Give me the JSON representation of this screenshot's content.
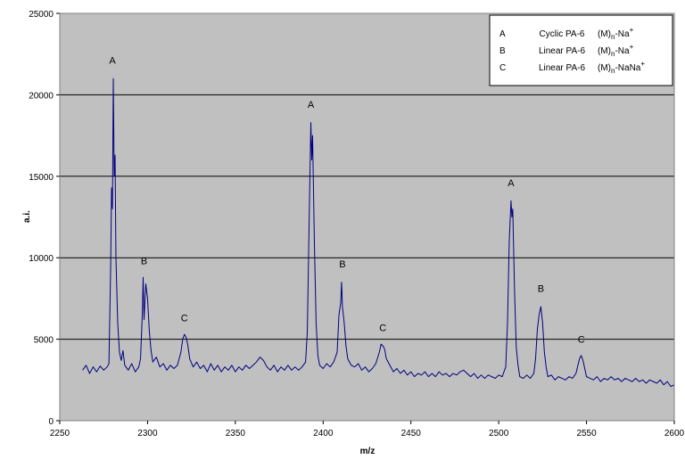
{
  "chart_data": {
    "type": "line",
    "x_label": "m/z",
    "y_label": "a.i.",
    "xlim": [
      2250,
      2600
    ],
    "xticks": [
      2250,
      2300,
      2350,
      2400,
      2450,
      2500,
      2550,
      2600
    ],
    "ylim": [
      0,
      25000
    ],
    "yticks": [
      0,
      5000,
      10000,
      15000,
      20000,
      25000
    ],
    "grid": true,
    "background": "#c0c0c0",
    "legend_position": "upper right",
    "x": [
      2263,
      2265,
      2267,
      2269,
      2271,
      2273,
      2275,
      2277,
      2278,
      2279,
      2279.5,
      2280,
      2280.5,
      2281,
      2281.5,
      2282,
      2283,
      2284,
      2285,
      2286,
      2287,
      2289,
      2291,
      2293,
      2295,
      2296,
      2297,
      2297.5,
      2298,
      2299,
      2300,
      2301,
      2302,
      2303,
      2305,
      2307,
      2309,
      2311,
      2313,
      2315,
      2317,
      2319,
      2320,
      2321,
      2322,
      2323,
      2324,
      2326,
      2328,
      2330,
      2332,
      2334,
      2336,
      2338,
      2340,
      2342,
      2344,
      2346,
      2348,
      2350,
      2352,
      2354,
      2356,
      2358,
      2360,
      2362,
      2364,
      2366,
      2368,
      2370,
      2372,
      2374,
      2376,
      2378,
      2380,
      2382,
      2384,
      2386,
      2388,
      2390,
      2391,
      2392,
      2393,
      2393.5,
      2394,
      2395,
      2396,
      2397,
      2398,
      2400,
      2402,
      2404,
      2406,
      2408,
      2409,
      2410,
      2410.5,
      2411,
      2412,
      2413,
      2414,
      2416,
      2418,
      2420,
      2422,
      2424,
      2426,
      2428,
      2430,
      2432,
      2433,
      2434,
      2435,
      2436,
      2438,
      2440,
      2442,
      2444,
      2446,
      2448,
      2450,
      2452,
      2454,
      2456,
      2458,
      2460,
      2462,
      2464,
      2466,
      2468,
      2470,
      2472,
      2474,
      2476,
      2478,
      2480,
      2482,
      2484,
      2486,
      2488,
      2490,
      2492,
      2494,
      2496,
      2498,
      2500,
      2502,
      2504,
      2505,
      2506,
      2507,
      2507.5,
      2508,
      2509,
      2510,
      2511,
      2512,
      2514,
      2516,
      2518,
      2520,
      2521,
      2522,
      2523,
      2524,
      2525,
      2526,
      2527,
      2528,
      2530,
      2532,
      2534,
      2536,
      2538,
      2540,
      2542,
      2544,
      2546,
      2547,
      2548,
      2549,
      2550,
      2552,
      2554,
      2556,
      2558,
      2560,
      2562,
      2564,
      2566,
      2568,
      2570,
      2572,
      2574,
      2576,
      2578,
      2580,
      2582,
      2584,
      2586,
      2588,
      2590,
      2592,
      2594,
      2596,
      2598,
      2600
    ],
    "series": [
      {
        "color": "#000080",
        "values": [
          3100,
          3400,
          2900,
          3300,
          3000,
          3350,
          3100,
          3300,
          3500,
          9500,
          14300,
          13000,
          21000,
          15000,
          16300,
          10000,
          6000,
          4200,
          3700,
          4300,
          3400,
          3100,
          3500,
          3000,
          3300,
          3800,
          6500,
          8800,
          6200,
          8400,
          7500,
          5500,
          4300,
          3600,
          3900,
          3300,
          3500,
          3100,
          3400,
          3200,
          3400,
          4200,
          5000,
          5300,
          5100,
          4600,
          3800,
          3300,
          3600,
          3200,
          3400,
          3000,
          3500,
          3100,
          3400,
          3000,
          3300,
          3100,
          3400,
          3000,
          3300,
          3100,
          3400,
          3200,
          3400,
          3600,
          3900,
          3700,
          3300,
          3100,
          3400,
          3000,
          3300,
          3100,
          3400,
          3100,
          3300,
          3100,
          3300,
          3600,
          5500,
          12000,
          18300,
          16000,
          17500,
          11000,
          6000,
          4000,
          3400,
          3200,
          3500,
          3300,
          3600,
          4200,
          6500,
          7200,
          8500,
          7000,
          6000,
          4600,
          3800,
          3400,
          3300,
          3500,
          3100,
          3300,
          3000,
          3200,
          3500,
          4200,
          4700,
          4600,
          4400,
          3800,
          3400,
          3000,
          3200,
          2900,
          3100,
          2800,
          3000,
          2700,
          2900,
          2800,
          3000,
          2700,
          2900,
          2700,
          3000,
          2800,
          2900,
          2700,
          2900,
          2800,
          3000,
          3100,
          2900,
          2700,
          2900,
          2600,
          2800,
          2600,
          2800,
          2700,
          2600,
          2800,
          2700,
          3300,
          6000,
          11000,
          13500,
          12500,
          13000,
          8000,
          4500,
          3400,
          2700,
          2600,
          2800,
          2600,
          2900,
          3800,
          5600,
          6500,
          7000,
          6000,
          4200,
          3300,
          2700,
          2800,
          2500,
          2700,
          2600,
          2500,
          2700,
          2600,
          2900,
          3800,
          4000,
          3700,
          3200,
          2700,
          2600,
          2500,
          2700,
          2400,
          2600,
          2500,
          2700,
          2500,
          2600,
          2400,
          2600,
          2500,
          2400,
          2600,
          2400,
          2500,
          2300,
          2500,
          2400,
          2300,
          2500,
          2200,
          2400,
          2100,
          2200
        ]
      }
    ],
    "annotations": [
      {
        "text": "A",
        "x": 2280,
        "y": 21900
      },
      {
        "text": "B",
        "x": 2298,
        "y": 9600
      },
      {
        "text": "C",
        "x": 2321,
        "y": 6100
      },
      {
        "text": "A",
        "x": 2393,
        "y": 19200
      },
      {
        "text": "B",
        "x": 2411,
        "y": 9400
      },
      {
        "text": "C",
        "x": 2434,
        "y": 5500
      },
      {
        "text": "A",
        "x": 2507,
        "y": 14400
      },
      {
        "text": "B",
        "x": 2524,
        "y": 7900
      },
      {
        "text": "C",
        "x": 2547,
        "y": 4800
      }
    ],
    "legend": [
      {
        "letter": "A",
        "name": "Cyclic PA-6",
        "formula": {
          "base": "(M)",
          "sub": "n",
          "rest": "-Na",
          "sup": "+"
        }
      },
      {
        "letter": "B",
        "name": "Linear PA-6",
        "formula": {
          "base": "(M)",
          "sub": "n",
          "rest": "-Na",
          "sup": "+"
        }
      },
      {
        "letter": "C",
        "name": "Linear PA-6",
        "formula": {
          "base": "(M)",
          "sub": "n",
          "rest": "-NaNa",
          "sup": "+"
        }
      }
    ]
  }
}
